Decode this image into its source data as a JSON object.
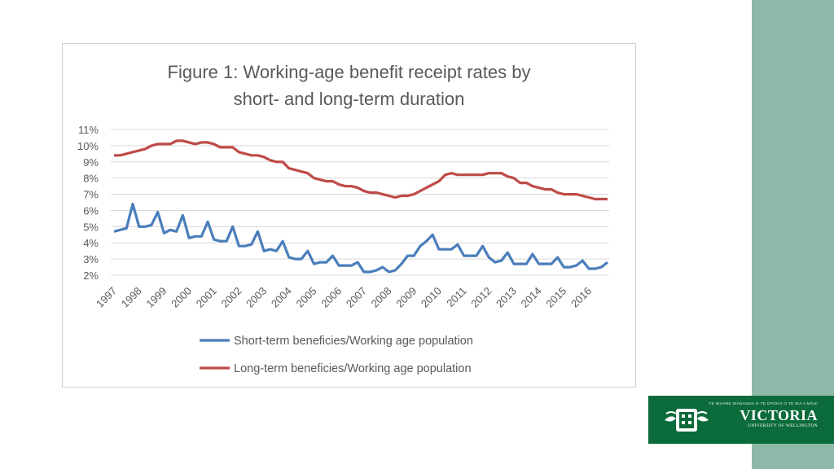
{
  "colors": {
    "background": "#ffffff",
    "side_band": "#8db9aa",
    "grid": "#d9d9d9",
    "text": "#595959",
    "logo_bg": "#0b6b3a"
  },
  "chart_data": {
    "type": "line",
    "title_line1": "Figure 1: Working-age benefit receipt rates by",
    "title_line2": "short- and long-term duration",
    "xlabel": "",
    "ylabel": "",
    "ylim": [
      0.02,
      0.11
    ],
    "yticks": [
      "11%",
      "10%",
      "9%",
      "8%",
      "7%",
      "6%",
      "5%",
      "4%",
      "3%",
      "2%"
    ],
    "xtick_labels": [
      "1997",
      "1998",
      "1999",
      "2000",
      "2001",
      "2002",
      "2003",
      "2004",
      "2005",
      "2006",
      "2007",
      "2008",
      "2009",
      "2010",
      "2011",
      "2012",
      "2013",
      "2014",
      "2015",
      "2016"
    ],
    "grid": true,
    "legend_position": "bottom",
    "x_start_year": 1997,
    "points_per_year": 4,
    "series": [
      {
        "name": "Short-term beneficies/Working age population",
        "color": "#4a7ebb",
        "values": [
          0.047,
          0.048,
          0.049,
          0.064,
          0.05,
          0.05,
          0.051,
          0.059,
          0.046,
          0.048,
          0.047,
          0.057,
          0.043,
          0.044,
          0.044,
          0.053,
          0.042,
          0.041,
          0.041,
          0.05,
          0.038,
          0.038,
          0.039,
          0.047,
          0.035,
          0.036,
          0.035,
          0.041,
          0.031,
          0.03,
          0.03,
          0.035,
          0.027,
          0.028,
          0.028,
          0.032,
          0.026,
          0.026,
          0.026,
          0.028,
          0.022,
          0.022,
          0.023,
          0.025,
          0.022,
          0.023,
          0.027,
          0.032,
          0.032,
          0.038,
          0.041,
          0.045,
          0.036,
          0.036,
          0.036,
          0.039,
          0.032,
          0.032,
          0.032,
          0.038,
          0.031,
          0.028,
          0.029,
          0.034,
          0.027,
          0.027,
          0.027,
          0.033,
          0.027,
          0.027,
          0.027,
          0.031,
          0.025,
          0.025,
          0.026,
          0.029,
          0.024,
          0.024,
          0.025,
          0.028
        ]
      },
      {
        "name": "Long-term beneficies/Working age population",
        "color": "#be4b48",
        "values": [
          0.094,
          0.094,
          0.095,
          0.096,
          0.097,
          0.098,
          0.1,
          0.101,
          0.101,
          0.101,
          0.103,
          0.103,
          0.102,
          0.101,
          0.102,
          0.102,
          0.101,
          0.099,
          0.099,
          0.099,
          0.096,
          0.095,
          0.094,
          0.094,
          0.093,
          0.091,
          0.09,
          0.09,
          0.086,
          0.085,
          0.084,
          0.083,
          0.08,
          0.079,
          0.078,
          0.078,
          0.076,
          0.075,
          0.075,
          0.074,
          0.072,
          0.071,
          0.071,
          0.07,
          0.069,
          0.068,
          0.069,
          0.069,
          0.07,
          0.072,
          0.074,
          0.076,
          0.078,
          0.082,
          0.083,
          0.082,
          0.082,
          0.082,
          0.082,
          0.082,
          0.083,
          0.083,
          0.083,
          0.081,
          0.08,
          0.077,
          0.077,
          0.075,
          0.074,
          0.073,
          0.073,
          0.071,
          0.07,
          0.07,
          0.07,
          0.069,
          0.068,
          0.067,
          0.067,
          0.067
        ]
      }
    ]
  },
  "logo": {
    "motto": "TE WHARE WĀNANGA O TE ŪPOKO O TE IKA A MĀUI",
    "name": "VICTORIA",
    "subtitle": "UNIVERSITY OF WELLINGTON"
  }
}
